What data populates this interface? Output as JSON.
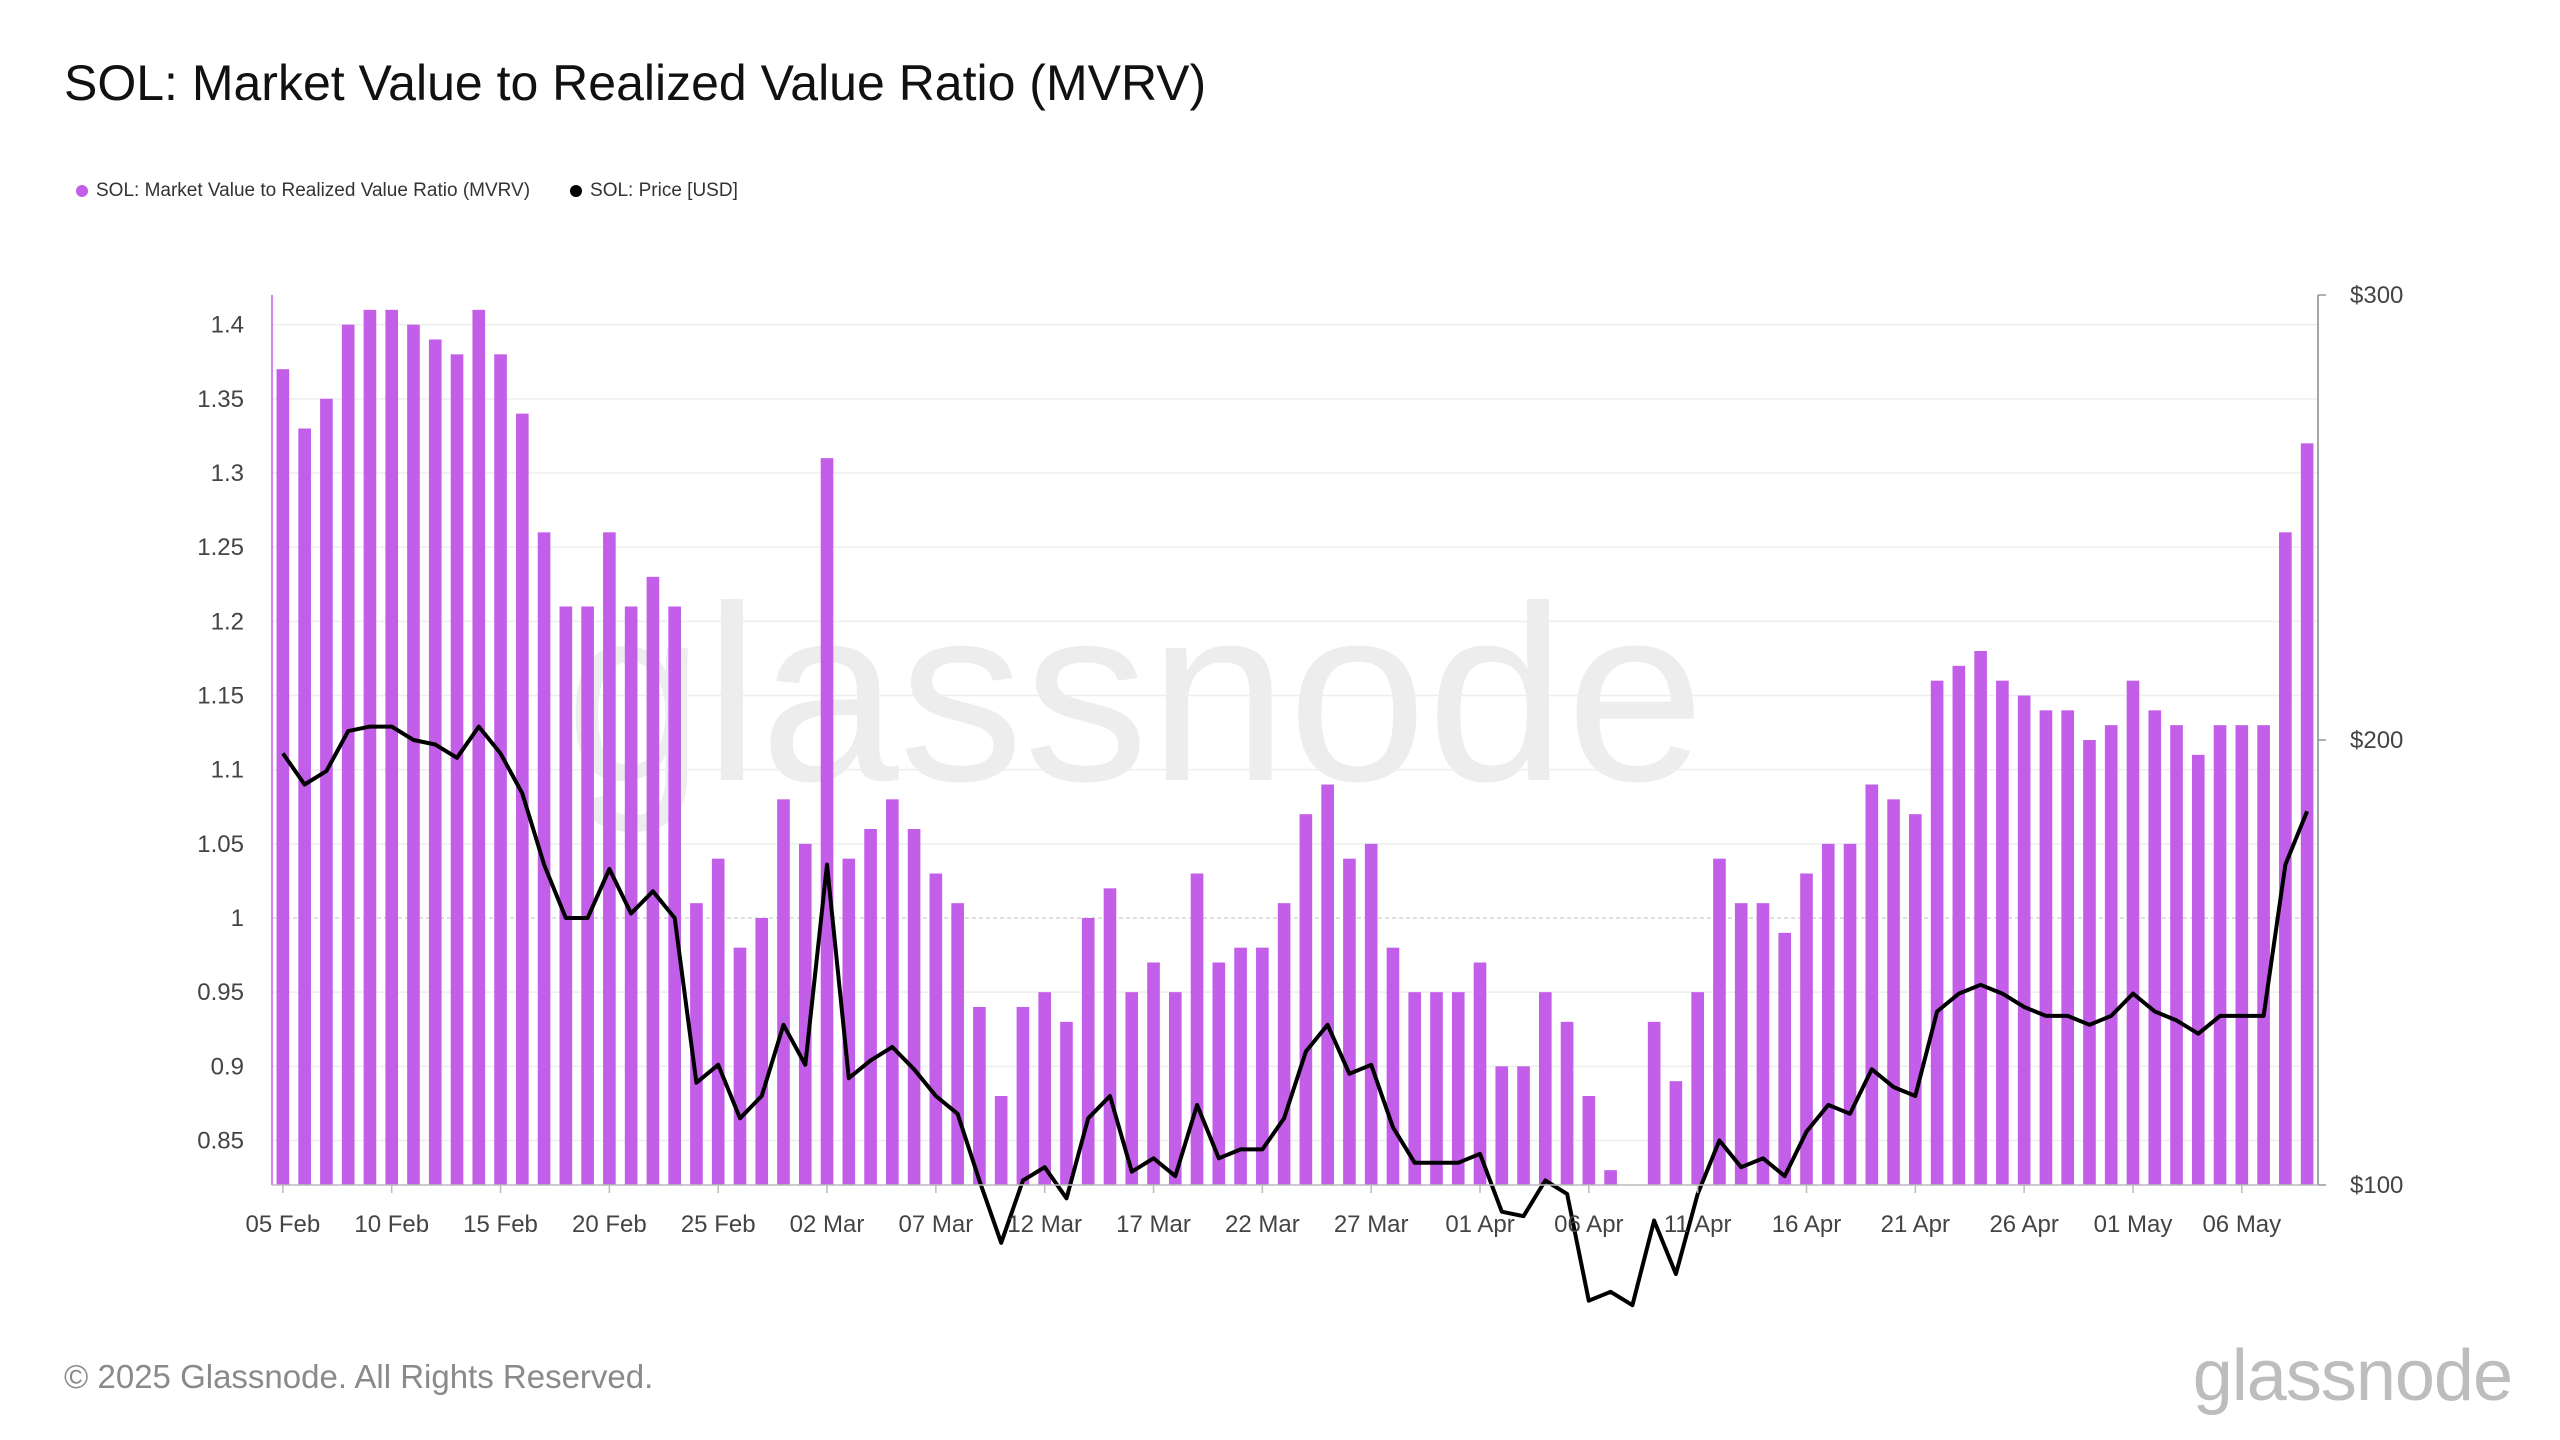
{
  "chart_data": {
    "type": "bar",
    "title": "SOL: Market Value to Realized Value Ratio (MVRV)",
    "watermark": "glassnode",
    "legend": [
      {
        "label": "SOL: Market Value to Realized Value Ratio (MVRV)",
        "color": "#c25ee8"
      },
      {
        "label": "SOL: Price [USD]",
        "color": "#000000"
      }
    ],
    "x_tick_labels": [
      "05 Feb",
      "10 Feb",
      "15 Feb",
      "20 Feb",
      "25 Feb",
      "02 Mar",
      "07 Mar",
      "12 Mar",
      "17 Mar",
      "22 Mar",
      "27 Mar",
      "01 Apr",
      "06 Apr",
      "11 Apr",
      "16 Apr",
      "21 Apr",
      "26 Apr",
      "01 May",
      "06 May"
    ],
    "y_left": {
      "ticks": [
        "0.85",
        "0.9",
        "0.95",
        "1",
        "1.05",
        "1.1",
        "1.15",
        "1.2",
        "1.25",
        "1.3",
        "1.35",
        "1.4"
      ],
      "ylim": [
        0.82,
        1.42
      ]
    },
    "y_right": {
      "ticks": [
        "$100",
        "$200",
        "$300"
      ],
      "ylim": [
        100,
        300
      ]
    },
    "series": [
      {
        "name": "SOL: Market Value to Realized Value Ratio (MVRV)",
        "type": "bar",
        "color": "#c25ee8",
        "values": [
          1.37,
          1.33,
          1.35,
          1.4,
          1.41,
          1.41,
          1.4,
          1.39,
          1.38,
          1.41,
          1.38,
          1.34,
          1.26,
          1.21,
          1.21,
          1.26,
          1.21,
          1.23,
          1.21,
          1.01,
          1.04,
          0.98,
          1.0,
          1.08,
          1.05,
          1.31,
          1.04,
          1.06,
          1.08,
          1.06,
          1.03,
          1.01,
          0.94,
          0.88,
          0.94,
          0.95,
          0.93,
          1.0,
          1.02,
          0.95,
          0.97,
          0.95,
          1.03,
          0.97,
          0.98,
          0.98,
          1.01,
          1.07,
          1.09,
          1.04,
          1.05,
          0.98,
          0.95,
          0.95,
          0.95,
          0.97,
          0.9,
          0.9,
          0.95,
          0.93,
          0.88,
          0.83,
          0.82,
          0.93,
          0.89,
          0.95,
          1.04,
          1.01,
          1.01,
          0.99,
          1.03,
          1.05,
          1.05,
          1.09,
          1.08,
          1.07,
          1.16,
          1.17,
          1.18,
          1.16,
          1.15,
          1.14,
          1.14,
          1.12,
          1.13,
          1.16,
          1.14,
          1.13,
          1.11,
          1.13,
          1.13,
          1.13,
          1.26,
          1.32
        ]
      },
      {
        "name": "SOL: Price [USD]",
        "type": "line",
        "color": "#000000",
        "values": [
          197,
          190,
          193,
          202,
          203,
          203,
          200,
          199,
          196,
          203,
          197,
          188,
          172,
          160,
          160,
          171,
          161,
          166,
          160,
          123,
          127,
          115,
          120,
          136,
          127,
          172,
          124,
          128,
          131,
          126,
          120,
          116,
          101,
          87,
          101,
          104,
          97,
          115,
          120,
          103,
          106,
          102,
          118,
          106,
          108,
          108,
          115,
          130,
          136,
          125,
          127,
          113,
          105,
          105,
          105,
          107,
          94,
          93,
          101,
          98,
          74,
          76,
          73,
          92,
          80,
          98,
          110,
          104,
          106,
          102,
          112,
          118,
          116,
          126,
          122,
          120,
          139,
          143,
          145,
          143,
          140,
          138,
          138,
          136,
          138,
          143,
          139,
          137,
          134,
          138,
          138,
          138,
          172,
          184
        ]
      }
    ]
  },
  "footer": {
    "copyright": "© 2025 Glassnode. All Rights Reserved.",
    "logo": "glassnode"
  }
}
